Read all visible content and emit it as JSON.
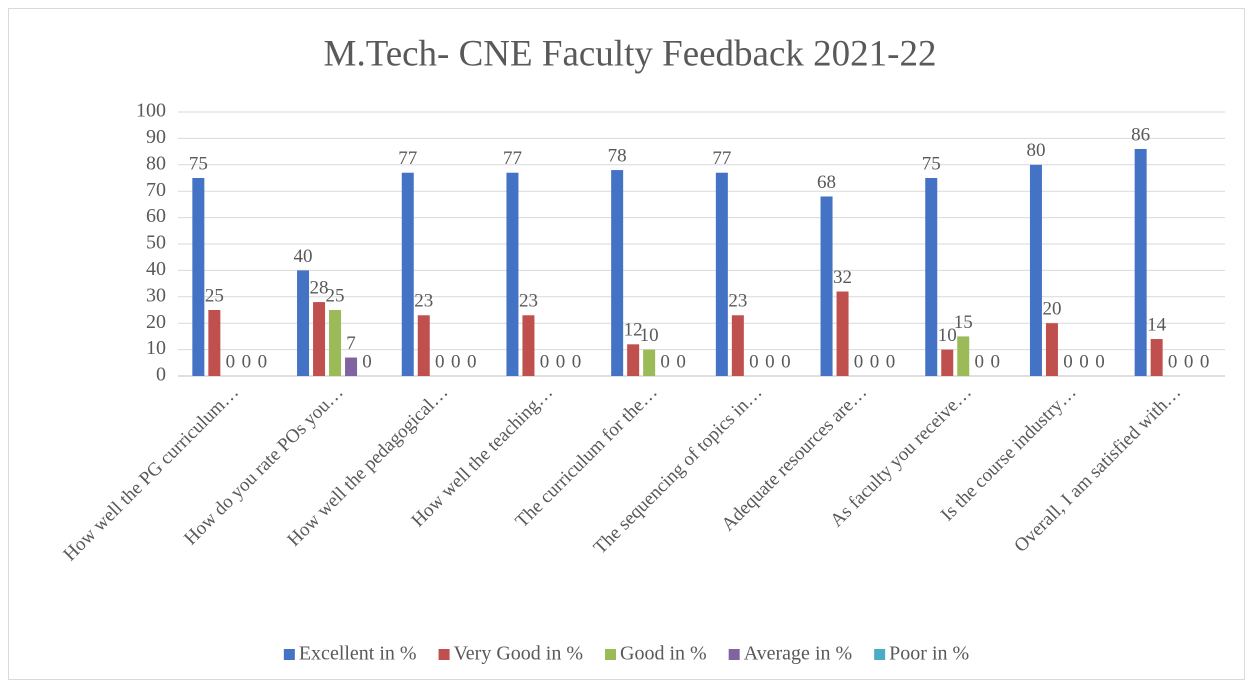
{
  "chart_data": {
    "type": "bar",
    "title": "M.Tech- CNE Faculty Feedback 2021-22",
    "categories": [
      "How well the PG curriculum…",
      "How do you rate POs you…",
      "How well the pedagogical…",
      "How well the teaching…",
      "The curriculum for the…",
      "The sequencing of topics in…",
      "Adequate resources are…",
      "As faculty you receive…",
      "Is the course industry…",
      "Overall, I am satisfied with…"
    ],
    "series": [
      {
        "name": "Excellent in %",
        "color": "#4472c4",
        "values": [
          75,
          40,
          77,
          77,
          78,
          77,
          68,
          75,
          80,
          86
        ]
      },
      {
        "name": "Very Good in %",
        "color": "#c0504d",
        "values": [
          25,
          28,
          23,
          23,
          12,
          23,
          32,
          10,
          20,
          14
        ]
      },
      {
        "name": "Good in %",
        "color": "#9bbb59",
        "values": [
          0,
          25,
          0,
          0,
          10,
          0,
          0,
          15,
          0,
          0
        ]
      },
      {
        "name": "Average in %",
        "color": "#8064a2",
        "values": [
          0,
          7,
          0,
          0,
          0,
          0,
          0,
          0,
          0,
          0
        ]
      },
      {
        "name": "Poor in %",
        "color": "#4bacc6",
        "values": [
          0,
          0,
          0,
          0,
          0,
          0,
          0,
          0,
          0,
          0
        ]
      }
    ],
    "ylim": [
      0,
      100
    ],
    "yticks": [
      0,
      10,
      20,
      30,
      40,
      50,
      60,
      70,
      80,
      90,
      100
    ],
    "grid": true,
    "legend": "bottom",
    "data_labels": true
  }
}
